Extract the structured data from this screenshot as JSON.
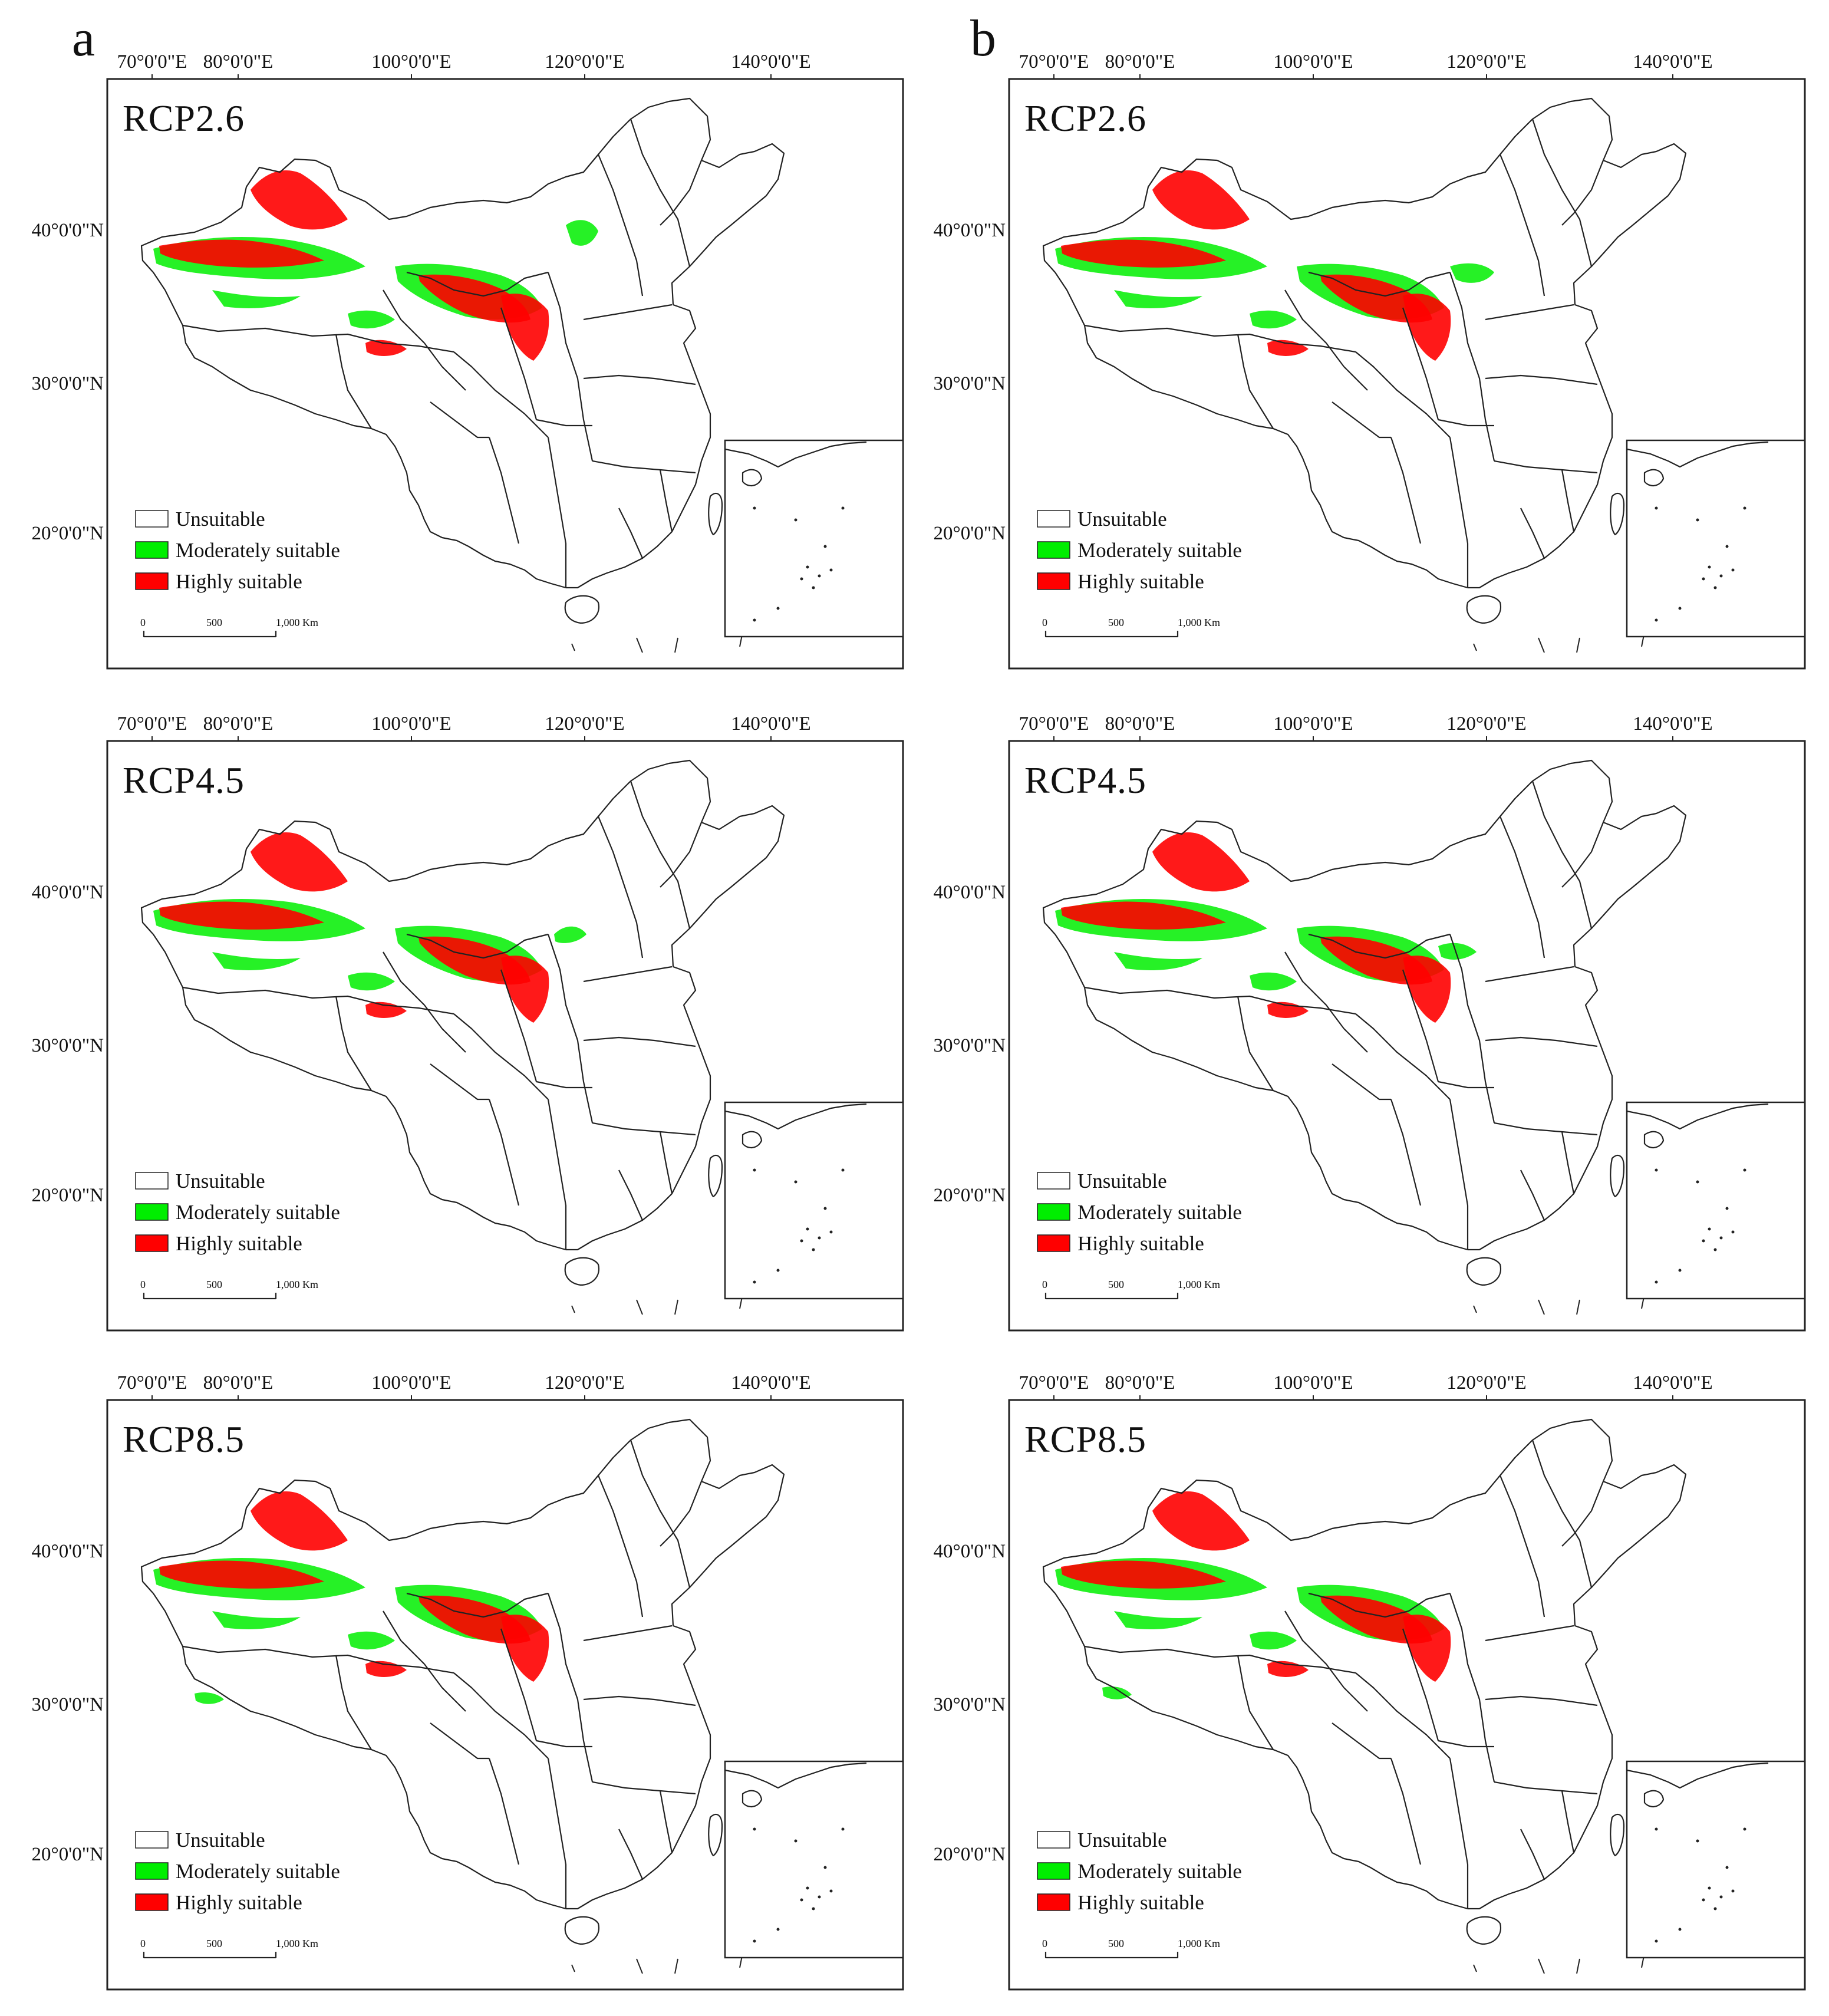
{
  "figure": {
    "columns": [
      {
        "letter": "a"
      },
      {
        "letter": "b"
      }
    ],
    "axes": {
      "longitude_labels": [
        "70°0'0\"E",
        "80°0'0\"E",
        "100°0'0\"E",
        "120°0'0\"E",
        "140°0'0\"E"
      ],
      "latitude_labels": [
        "40°0'0\"N",
        "30°0'0\"N",
        "20°0'0\"N"
      ]
    },
    "legend": {
      "items": [
        {
          "label": "Unsuitable",
          "color": "#ffffff"
        },
        {
          "label": "Moderately suitable",
          "color": "#00ee00"
        },
        {
          "label": "Highly suitable",
          "color": "#ff0000"
        }
      ]
    },
    "scale_bar": {
      "labels": [
        "0",
        "500",
        "1,000 Km"
      ]
    },
    "colors": {
      "unsuitable": "#ffffff",
      "moderately_suitable": "#00ee00",
      "highly_suitable": "#ff0000",
      "outline": "#222222"
    },
    "panels": [
      {
        "column": "a",
        "scenario": "RCP2.6"
      },
      {
        "column": "b",
        "scenario": "RCP2.6"
      },
      {
        "column": "a",
        "scenario": "RCP4.5"
      },
      {
        "column": "b",
        "scenario": "RCP4.5"
      },
      {
        "column": "a",
        "scenario": "RCP8.5"
      },
      {
        "column": "b",
        "scenario": "RCP8.5"
      }
    ]
  }
}
